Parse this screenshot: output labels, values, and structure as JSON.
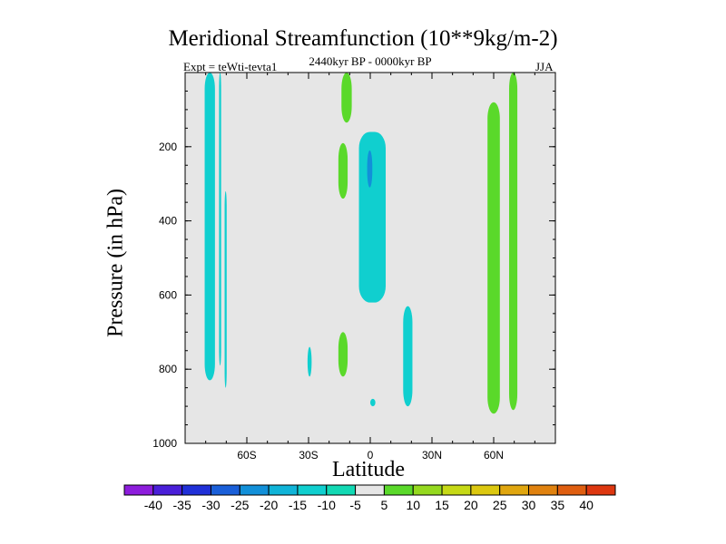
{
  "chart_data": {
    "type": "contour",
    "title": "Meridional Streamfunction (10**9kg/m-2)",
    "subtitle_left": "Expt = teWti-tevta1",
    "subtitle_center": "2440kyr BP - 0000kyr BP",
    "subtitle_right": "JJA",
    "xlabel": "Latitude",
    "ylabel": "Pressure (in hPa)",
    "xlim": [
      -90,
      90
    ],
    "ylim": [
      1000,
      0
    ],
    "x_ticks": [
      {
        "value": -60,
        "label": "60S"
      },
      {
        "value": -30,
        "label": "30S"
      },
      {
        "value": 0,
        "label": "0"
      },
      {
        "value": 30,
        "label": "30N"
      },
      {
        "value": 60,
        "label": "60N"
      }
    ],
    "y_ticks": [
      {
        "value": 200,
        "label": "200"
      },
      {
        "value": 400,
        "label": "400"
      },
      {
        "value": 600,
        "label": "600"
      },
      {
        "value": 800,
        "label": "800"
      },
      {
        "value": 1000,
        "label": "1000"
      }
    ],
    "background_color": "#e6e6e6",
    "colorbar": {
      "colors": [
        "#8d1ddc",
        "#4a1fd9",
        "#2030d8",
        "#1a5fd9",
        "#1290d9",
        "#10b4d8",
        "#10cfcf",
        "#12d9b4",
        "#e6e6e6",
        "#5ad92a",
        "#95d91f",
        "#c6d916",
        "#dcc810",
        "#e0a60f",
        "#e0820f",
        "#df5e10",
        "#dd3710"
      ],
      "labels": [
        "-40",
        "-35",
        "-30",
        "-25",
        "-20",
        "-15",
        "-10",
        "-5",
        "5",
        "10",
        "15",
        "20",
        "25",
        "30",
        "35",
        "40"
      ]
    },
    "regions": [
      {
        "label": "SH high-latitude column (-5)",
        "color": "#10cfcf",
        "lat": [
          -80.5,
          -75.5
        ],
        "p": [
          0,
          830
        ]
      },
      {
        "label": "narrow SH column",
        "color": "#10cfcf",
        "lat": [
          -73.5,
          -72.5
        ],
        "p": [
          0,
          790
        ]
      },
      {
        "label": "narrow SH column lower",
        "color": "#10cfcf",
        "lat": [
          -70.8,
          -69.8
        ],
        "p": [
          320,
          850
        ]
      },
      {
        "label": "equatorial upper positive",
        "color": "#5ad92a",
        "lat": [
          -14,
          -9
        ],
        "p": [
          0,
          135
        ]
      },
      {
        "label": "subtropical positive cell",
        "color": "#5ad92a",
        "lat": [
          -15.5,
          -11
        ],
        "p": [
          190,
          340
        ]
      },
      {
        "label": "central negative cell",
        "color": "#10cfcf",
        "lat": [
          -5.5,
          7.5
        ],
        "p": [
          160,
          620
        ]
      },
      {
        "label": "central negative core (-10)",
        "color": "#1290d9",
        "lat": [
          -1.5,
          1
        ],
        "p": [
          210,
          310
        ]
      },
      {
        "label": "lower positive patch",
        "color": "#5ad92a",
        "lat": [
          -15.5,
          -11
        ],
        "p": [
          700,
          820
        ]
      },
      {
        "label": "small negative patch SH",
        "color": "#10cfcf",
        "lat": [
          -30.5,
          -28.5
        ],
        "p": [
          740,
          820
        ]
      },
      {
        "label": "NH subtropical negative column",
        "color": "#10cfcf",
        "lat": [
          16,
          20.5
        ],
        "p": [
          630,
          900
        ]
      },
      {
        "label": "small negative dot",
        "color": "#10cfcf",
        "lat": [
          0,
          2.5
        ],
        "p": [
          880,
          900
        ]
      },
      {
        "label": "NH high-latitude positive column",
        "color": "#5ad92a",
        "lat": [
          57,
          63
        ],
        "p": [
          80,
          920
        ]
      },
      {
        "label": "NH polar positive column",
        "color": "#5ad92a",
        "lat": [
          67.5,
          71.5
        ],
        "p": [
          0,
          910
        ]
      }
    ]
  }
}
